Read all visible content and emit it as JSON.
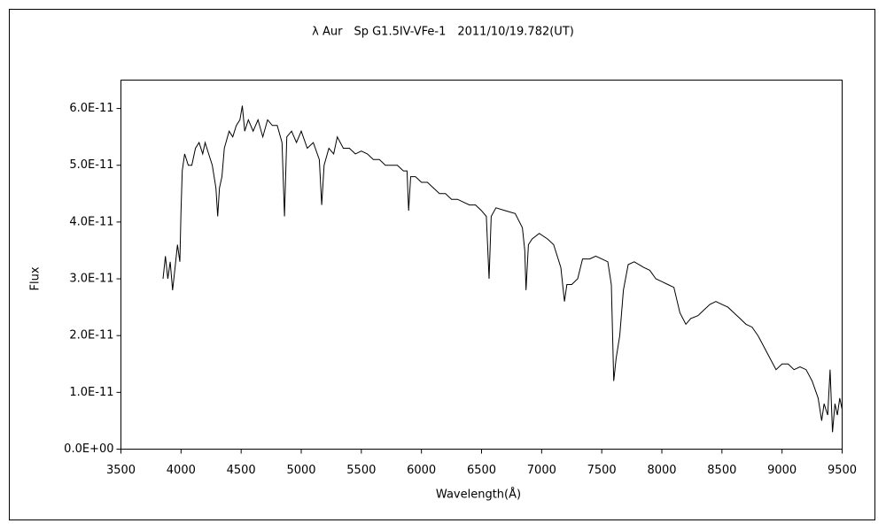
{
  "chart_data": {
    "type": "line",
    "title": "λ Aur　Sp G1.5IV-VFe-1　2011/10/19.782(UT)",
    "xlabel": "Wavelength(Å)",
    "ylabel": "Flux",
    "color": "#000000",
    "xlim": [
      3500,
      9500
    ],
    "xticks": [
      3500,
      4000,
      4500,
      5000,
      5500,
      6000,
      6500,
      7000,
      7500,
      8000,
      8500,
      9000,
      9500
    ],
    "ylim": [
      0,
      6.5e-11
    ],
    "yticks": [
      {
        "value": 0,
        "label": "0.0E+00"
      },
      {
        "value": 1e-11,
        "label": "1.0E-11"
      },
      {
        "value": 2e-11,
        "label": "2.0E-11"
      },
      {
        "value": 3e-11,
        "label": "3.0E-11"
      },
      {
        "value": 4e-11,
        "label": "4.0E-11"
      },
      {
        "value": 5e-11,
        "label": "5.0E-11"
      },
      {
        "value": 6e-11,
        "label": "6.0E-11"
      }
    ],
    "x": [
      3850,
      3870,
      3890,
      3910,
      3930,
      3950,
      3970,
      3990,
      4000,
      4010,
      4030,
      4060,
      4090,
      4120,
      4150,
      4180,
      4200,
      4230,
      4260,
      4290,
      4305,
      4320,
      4340,
      4360,
      4400,
      4430,
      4460,
      4490,
      4510,
      4530,
      4560,
      4600,
      4640,
      4680,
      4720,
      4760,
      4800,
      4840,
      4861,
      4880,
      4920,
      4960,
      5000,
      5050,
      5100,
      5150,
      5170,
      5190,
      5230,
      5270,
      5300,
      5350,
      5400,
      5450,
      5500,
      5550,
      5600,
      5650,
      5700,
      5750,
      5800,
      5850,
      5880,
      5893,
      5910,
      5950,
      6000,
      6050,
      6100,
      6150,
      6200,
      6250,
      6300,
      6350,
      6400,
      6450,
      6500,
      6540,
      6563,
      6580,
      6620,
      6700,
      6780,
      6840,
      6860,
      6870,
      6890,
      6920,
      6980,
      7050,
      7100,
      7160,
      7190,
      7210,
      7250,
      7300,
      7340,
      7400,
      7450,
      7500,
      7550,
      7580,
      7600,
      7620,
      7650,
      7680,
      7720,
      7770,
      7850,
      7900,
      7950,
      8000,
      8050,
      8100,
      8150,
      8200,
      8240,
      8300,
      8350,
      8400,
      8450,
      8500,
      8550,
      8600,
      8650,
      8700,
      8750,
      8800,
      8850,
      8900,
      8950,
      9000,
      9050,
      9100,
      9150,
      9200,
      9250,
      9300,
      9330,
      9350,
      9380,
      9400,
      9420,
      9440,
      9460,
      9480,
      9500
    ],
    "y": [
      3e-11,
      3.4e-11,
      3e-11,
      3.3e-11,
      2.8e-11,
      3.2e-11,
      3.6e-11,
      3.3e-11,
      4.2e-11,
      4.9e-11,
      5.2e-11,
      5e-11,
      5e-11,
      5.3e-11,
      5.4e-11,
      5.2e-11,
      5.4e-11,
      5.2e-11,
      5e-11,
      4.6e-11,
      4.1e-11,
      4.6e-11,
      4.8e-11,
      5.3e-11,
      5.6e-11,
      5.5e-11,
      5.7e-11,
      5.8e-11,
      6.05e-11,
      5.6e-11,
      5.8e-11,
      5.6e-11,
      5.8e-11,
      5.5e-11,
      5.8e-11,
      5.7e-11,
      5.7e-11,
      5.4e-11,
      4.1e-11,
      5.5e-11,
      5.6e-11,
      5.4e-11,
      5.6e-11,
      5.3e-11,
      5.4e-11,
      5.1e-11,
      4.3e-11,
      5e-11,
      5.3e-11,
      5.2e-11,
      5.5e-11,
      5.3e-11,
      5.3e-11,
      5.2e-11,
      5.25e-11,
      5.2e-11,
      5.1e-11,
      5.1e-11,
      5e-11,
      5e-11,
      5e-11,
      4.9e-11,
      4.9e-11,
      4.2e-11,
      4.8e-11,
      4.8e-11,
      4.7e-11,
      4.7e-11,
      4.6e-11,
      4.5e-11,
      4.5e-11,
      4.4e-11,
      4.4e-11,
      4.35e-11,
      4.3e-11,
      4.3e-11,
      4.2e-11,
      4.1e-11,
      3e-11,
      4.1e-11,
      4.25e-11,
      4.2e-11,
      4.15e-11,
      3.9e-11,
      3.5e-11,
      2.8e-11,
      3.6e-11,
      3.7e-11,
      3.8e-11,
      3.7e-11,
      3.6e-11,
      3.2e-11,
      2.6e-11,
      2.9e-11,
      2.9e-11,
      3e-11,
      3.35e-11,
      3.35e-11,
      3.4e-11,
      3.35e-11,
      3.3e-11,
      2.9e-11,
      1.2e-11,
      1.6e-11,
      2e-11,
      2.8e-11,
      3.25e-11,
      3.3e-11,
      3.2e-11,
      3.15e-11,
      3e-11,
      2.95e-11,
      2.9e-11,
      2.85e-11,
      2.4e-11,
      2.2e-11,
      2.3e-11,
      2.35e-11,
      2.45e-11,
      2.55e-11,
      2.6e-11,
      2.55e-11,
      2.5e-11,
      2.4e-11,
      2.3e-11,
      2.2e-11,
      2.15e-11,
      2e-11,
      1.8e-11,
      1.6e-11,
      1.4e-11,
      1.5e-11,
      1.5e-11,
      1.4e-11,
      1.45e-11,
      1.4e-11,
      1.2e-11,
      9e-12,
      5e-12,
      8e-12,
      6e-12,
      1.4e-11,
      3e-12,
      8e-12,
      6e-12,
      9e-12,
      7e-12
    ]
  }
}
